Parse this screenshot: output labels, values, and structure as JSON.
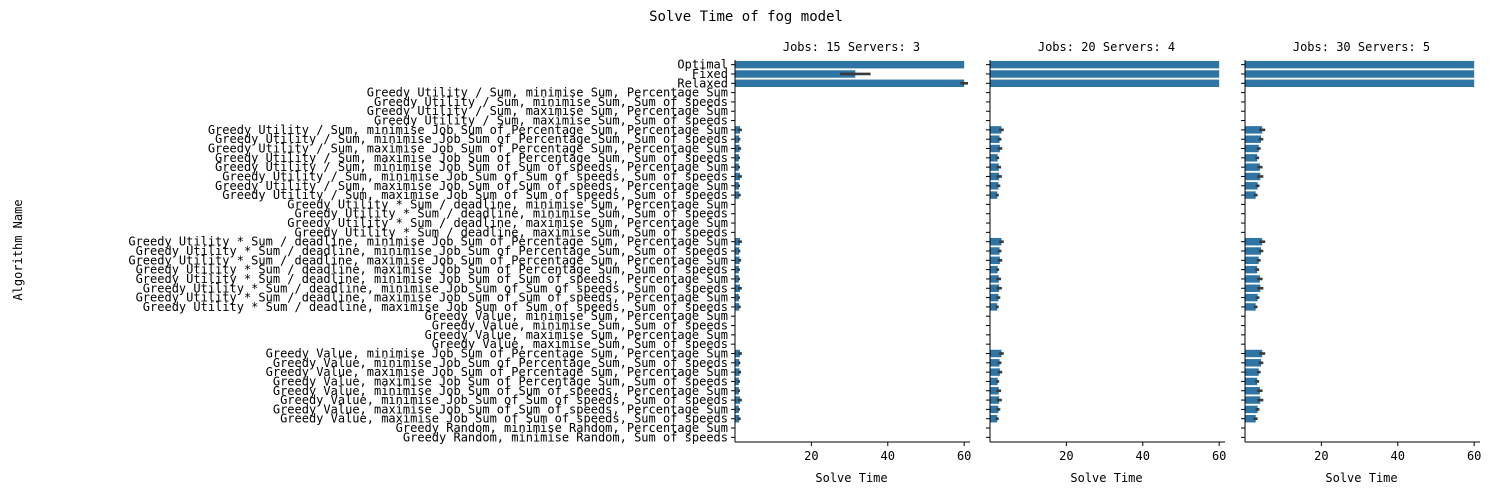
{
  "figure": {
    "title": "Solve Time of fog model",
    "ylabel": "Algorithm Name"
  },
  "chart_data": {
    "type": "bar",
    "orientation": "horizontal",
    "bar_color": "#2e75a6",
    "error_color": "#3a3a3a",
    "categories": [
      "Optimal",
      "Fixed",
      "Relaxed",
      "Greedy Utility / Sum, minimise Sum, Percentage Sum",
      "Greedy Utility / Sum, minimise Sum, Sum of speeds",
      "Greedy Utility / Sum, maximise Sum, Percentage Sum",
      "Greedy Utility / Sum, maximise Sum, Sum of speeds",
      "Greedy Utility / Sum, minimise Job Sum of Percentage Sum, Percentage Sum",
      "Greedy Utility / Sum, minimise Job Sum of Percentage Sum, Sum of speeds",
      "Greedy Utility / Sum, maximise Job Sum of Percentage Sum, Percentage Sum",
      "Greedy Utility / Sum, maximise Job Sum of Percentage Sum, Sum of speeds",
      "Greedy Utility / Sum, minimise Job Sum of Sum of speeds, Percentage Sum",
      "Greedy Utility / Sum, minimise Job Sum of Sum of speeds, Sum of speeds",
      "Greedy Utility / Sum, maximise Job Sum of Sum of speeds, Percentage Sum",
      "Greedy Utility / Sum, maximise Job Sum of Sum of speeds, Sum of speeds",
      "Greedy Utility * Sum / deadline, minimise Sum, Percentage Sum",
      "Greedy Utility * Sum / deadline, minimise Sum, Sum of speeds",
      "Greedy Utility * Sum / deadline, maximise Sum, Percentage Sum",
      "Greedy Utility * Sum / deadline, maximise Sum, Sum of speeds",
      "Greedy Utility * Sum / deadline, minimise Job Sum of Percentage Sum, Percentage Sum",
      "Greedy Utility * Sum / deadline, minimise Job Sum of Percentage Sum, Sum of speeds",
      "Greedy Utility * Sum / deadline, maximise Job Sum of Percentage Sum, Percentage Sum",
      "Greedy Utility * Sum / deadline, maximise Job Sum of Percentage Sum, Sum of speeds",
      "Greedy Utility * Sum / deadline, minimise Job Sum of Sum of speeds, Percentage Sum",
      "Greedy Utility * Sum / deadline, minimise Job Sum of Sum of speeds, Sum of speeds",
      "Greedy Utility * Sum / deadline, maximise Job Sum of Sum of speeds, Percentage Sum",
      "Greedy Utility * Sum / deadline, maximise Job Sum of Sum of speeds, Sum of speeds",
      "Greedy Value, minimise Sum, Percentage Sum",
      "Greedy Value, minimise Sum, Sum of speeds",
      "Greedy Value, maximise Sum, Percentage Sum",
      "Greedy Value, maximise Sum, Sum of speeds",
      "Greedy Value, minimise Job Sum of Percentage Sum, Percentage Sum",
      "Greedy Value, minimise Job Sum of Percentage Sum, Sum of speeds",
      "Greedy Value, maximise Job Sum of Percentage Sum, Percentage Sum",
      "Greedy Value, maximise Job Sum of Percentage Sum, Sum of speeds",
      "Greedy Value, minimise Job Sum of Sum of speeds, Percentage Sum",
      "Greedy Value, minimise Job Sum of Sum of speeds, Sum of speeds",
      "Greedy Value, maximise Job Sum of Sum of speeds, Percentage Sum",
      "Greedy Value, maximise Job Sum of Sum of speeds, Sum of speeds",
      "Greedy Random, minimise Random, Percentage Sum",
      "Greedy Random, minimise Random, Sum of speeds"
    ],
    "panels": [
      {
        "title": "Jobs: 15 Servers: 3",
        "xlabel": "Solve Time",
        "xlim": [
          0,
          61
        ],
        "xticks": [
          20,
          40,
          60
        ],
        "values": [
          60,
          31.5,
          60,
          0.08,
          0.08,
          0.08,
          0.08,
          1.3,
          1.1,
          1.2,
          1.0,
          1.0,
          1.3,
          1.0,
          1.1,
          0.08,
          0.08,
          0.08,
          0.08,
          1.3,
          1.1,
          1.2,
          1.0,
          1.0,
          1.3,
          1.0,
          1.1,
          0.08,
          0.08,
          0.08,
          0.08,
          1.3,
          1.1,
          1.2,
          1.0,
          1.0,
          1.3,
          1.0,
          1.1,
          0.08,
          0.08
        ],
        "errors": [
          0,
          4.0,
          1.0,
          0,
          0,
          0,
          0,
          0.5,
          0.3,
          0.4,
          0.3,
          0.3,
          0.5,
          0.3,
          0.4,
          0,
          0,
          0,
          0,
          0.5,
          0.3,
          0.4,
          0.3,
          0.3,
          0.5,
          0.3,
          0.4,
          0,
          0,
          0,
          0,
          0.5,
          0.3,
          0.4,
          0.3,
          0.3,
          0.5,
          0.3,
          0.4,
          0,
          0
        ]
      },
      {
        "title": "Jobs: 20 Servers: 4",
        "xlabel": "Solve Time",
        "xlim": [
          0,
          61
        ],
        "xticks": [
          20,
          40,
          60
        ],
        "values": [
          60,
          60,
          60,
          0.08,
          0.08,
          0.08,
          0.08,
          3.0,
          2.5,
          2.6,
          2.0,
          2.3,
          2.4,
          2.2,
          1.9,
          0.08,
          0.08,
          0.08,
          0.08,
          3.0,
          2.5,
          2.6,
          2.0,
          2.3,
          2.4,
          2.2,
          1.9,
          0.08,
          0.08,
          0.08,
          0.08,
          3.0,
          2.5,
          2.6,
          2.0,
          2.3,
          2.4,
          2.2,
          1.9,
          0.08,
          0.08
        ],
        "errors": [
          0,
          0,
          0,
          0,
          0,
          0,
          0,
          0.6,
          0.5,
          0.6,
          0.4,
          0.6,
          0.7,
          0.5,
          0.4,
          0,
          0,
          0,
          0,
          0.6,
          0.5,
          0.6,
          0.4,
          0.6,
          0.7,
          0.5,
          0.4,
          0,
          0,
          0,
          0,
          0.6,
          0.5,
          0.6,
          0.4,
          0.6,
          0.7,
          0.5,
          0.4,
          0,
          0
        ]
      },
      {
        "title": "Jobs: 30 Servers: 5",
        "xlabel": "Solve Time",
        "xlim": [
          0,
          61
        ],
        "xticks": [
          20,
          40,
          60
        ],
        "values": [
          60,
          60,
          60,
          0.08,
          0.08,
          0.08,
          0.08,
          4.5,
          4.2,
          3.6,
          3.2,
          3.9,
          4.0,
          3.3,
          2.8,
          0.08,
          0.08,
          0.08,
          0.08,
          4.5,
          4.2,
          3.6,
          3.2,
          3.9,
          4.0,
          3.3,
          2.8,
          0.08,
          0.08,
          0.08,
          0.08,
          4.5,
          4.2,
          3.6,
          3.2,
          3.9,
          4.0,
          3.3,
          2.8,
          0.08,
          0.08
        ],
        "errors": [
          0,
          0,
          0,
          0,
          0,
          0,
          0,
          0.8,
          0.6,
          0.5,
          0.5,
          0.7,
          0.8,
          0.5,
          0.5,
          0,
          0,
          0,
          0,
          0.8,
          0.6,
          0.5,
          0.5,
          0.7,
          0.8,
          0.5,
          0.5,
          0,
          0,
          0,
          0,
          0.8,
          0.6,
          0.5,
          0.5,
          0.7,
          0.8,
          0.5,
          0.5,
          0,
          0
        ]
      }
    ]
  }
}
